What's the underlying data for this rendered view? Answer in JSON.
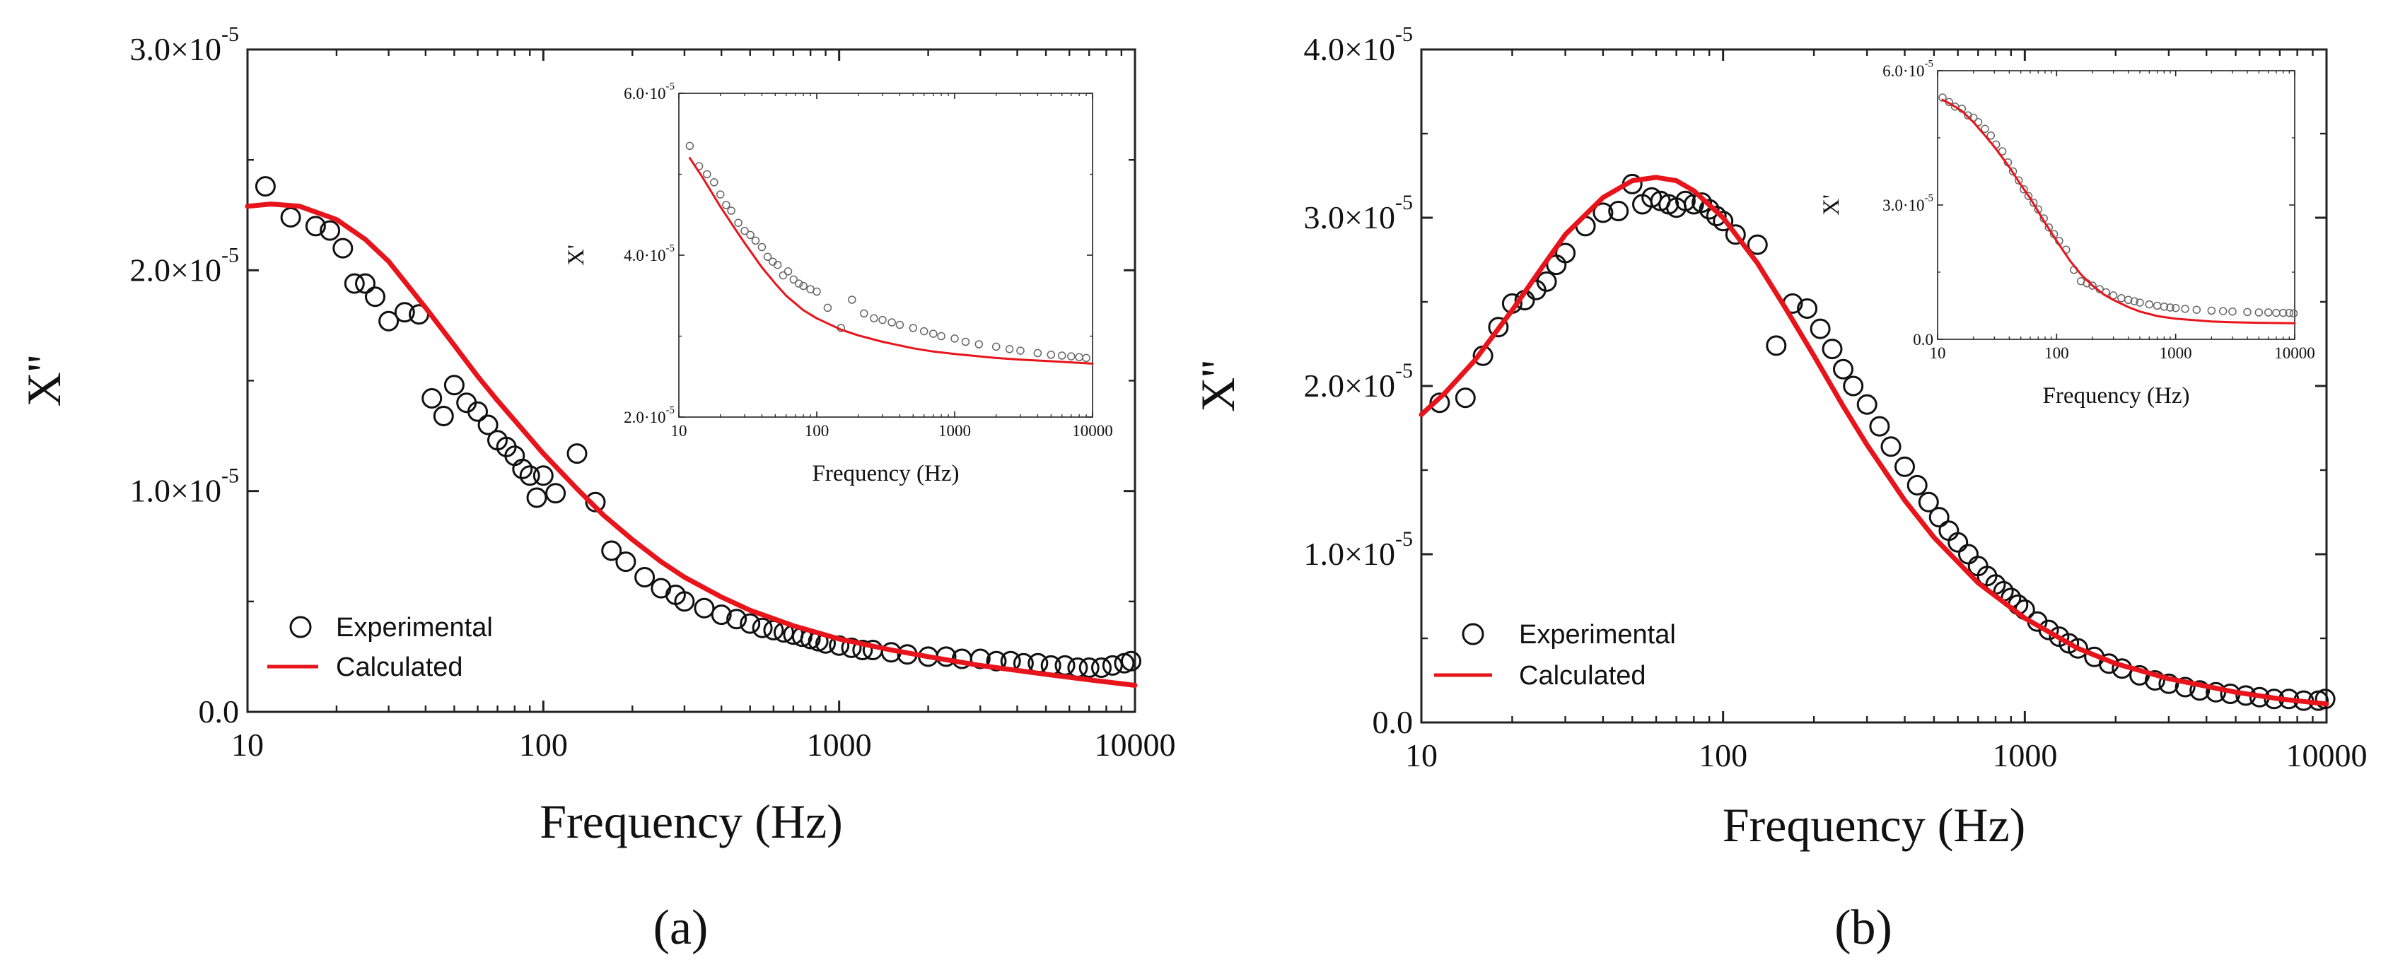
{
  "chart_data": [
    {
      "type": "scatter",
      "panel_label": "(a)",
      "xlabel": "Frequency (Hz)",
      "ylabel": "X''",
      "xscale": "log",
      "xlim": [
        10,
        10000
      ],
      "ylim": [
        0,
        3e-05
      ],
      "xticks": [
        10,
        100,
        1000,
        10000
      ],
      "xtick_labels": [
        "10",
        "100",
        "1000",
        "10000"
      ],
      "yticks": [
        0,
        1e-05,
        2e-05,
        3e-05
      ],
      "ytick_labels": [
        {
          "mant": "0.0",
          "exp": ""
        },
        {
          "mant": "1.0×10",
          "exp": "-5"
        },
        {
          "mant": "2.0×10",
          "exp": "-5"
        },
        {
          "mant": "3.0×10",
          "exp": "-5"
        }
      ],
      "legend": {
        "position": "bottom-left",
        "experimental": "Experimental",
        "calculated": "Calculated"
      },
      "series": [
        {
          "name": "Experimental",
          "style": "open-circle",
          "x": [
            11.5,
            14,
            17,
            19,
            21,
            23,
            25,
            27,
            30,
            34,
            38,
            42,
            46,
            50,
            55,
            60,
            65,
            70,
            75,
            80,
            85,
            90,
            95,
            100,
            110,
            130,
            150,
            170,
            190,
            220,
            250,
            280,
            300,
            350,
            400,
            450,
            500,
            550,
            600,
            650,
            700,
            750,
            800,
            850,
            900,
            1000,
            1100,
            1200,
            1300,
            1500,
            1700,
            2000,
            2300,
            2600,
            3000,
            3400,
            3800,
            4200,
            4700,
            5200,
            5800,
            6400,
            7000,
            7700,
            8400,
            9200,
            9700
          ],
          "y": [
            2.38e-05,
            2.24e-05,
            2.2e-05,
            2.18e-05,
            2.1e-05,
            1.94e-05,
            1.94e-05,
            1.88e-05,
            1.77e-05,
            1.81e-05,
            1.8e-05,
            1.42e-05,
            1.34e-05,
            1.48e-05,
            1.4e-05,
            1.36e-05,
            1.3e-05,
            1.23e-05,
            1.2e-05,
            1.16e-05,
            1.1e-05,
            1.07e-05,
            9.7e-06,
            1.07e-05,
            9.9e-06,
            1.17e-05,
            9.5e-06,
            7.3e-06,
            6.8e-06,
            6.1e-06,
            5.6e-06,
            5.3e-06,
            5e-06,
            4.7e-06,
            4.4e-06,
            4.2e-06,
            4e-06,
            3.8e-06,
            3.7e-06,
            3.6e-06,
            3.5e-06,
            3.4e-06,
            3.3e-06,
            3.2e-06,
            3.1e-06,
            3e-06,
            2.9e-06,
            2.8e-06,
            2.8e-06,
            2.7e-06,
            2.6e-06,
            2.5e-06,
            2.5e-06,
            2.4e-06,
            2.4e-06,
            2.3e-06,
            2.3e-06,
            2.2e-06,
            2.2e-06,
            2.1e-06,
            2.1e-06,
            2e-06,
            2e-06,
            2e-06,
            2.1e-06,
            2.2e-06,
            2.3e-06
          ]
        },
        {
          "name": "Calculated",
          "style": "line",
          "color": "#e8141b",
          "x": [
            10,
            12,
            15,
            20,
            25,
            30,
            40,
            50,
            60,
            70,
            80,
            100,
            130,
            160,
            200,
            250,
            300,
            400,
            500,
            700,
            1000,
            1500,
            2000,
            3000,
            5000,
            7000,
            10000
          ],
          "y": [
            2.29e-05,
            2.3e-05,
            2.29e-05,
            2.23e-05,
            2.14e-05,
            2.04e-05,
            1.83e-05,
            1.66e-05,
            1.52e-05,
            1.41e-05,
            1.32e-05,
            1.17e-05,
            1.01e-05,
            8.9e-06,
            7.8e-06,
            6.8e-06,
            6.1e-06,
            5.2e-06,
            4.6e-06,
            3.9e-06,
            3.3e-06,
            2.8e-06,
            2.5e-06,
            2.1e-06,
            1.7e-06,
            1.45e-06,
            1.2e-06
          ]
        }
      ],
      "inset": {
        "xlabel": "Frequency (Hz)",
        "ylabel": "X'",
        "xscale": "log",
        "xlim": [
          10,
          10000
        ],
        "ylim": [
          2e-05,
          6e-05
        ],
        "xticks": [
          10,
          100,
          1000,
          10000
        ],
        "xtick_labels": [
          "10",
          "100",
          "1000",
          "10000"
        ],
        "yticks": [
          2e-05,
          4e-05,
          6e-05
        ],
        "ytick_labels": [
          {
            "mant": "2.0·10",
            "exp": "-5"
          },
          {
            "mant": "4.0·10",
            "exp": "-5"
          },
          {
            "mant": "6.0·10",
            "exp": "-5"
          }
        ],
        "series": [
          {
            "name": "Experimental",
            "style": "open-circle",
            "x": [
              12,
              14,
              16,
              18,
              20,
              22,
              24,
              27,
              30,
              33,
              36,
              40,
              44,
              48,
              52,
              57,
              62,
              68,
              74,
              80,
              90,
              100,
              120,
              150,
              180,
              220,
              260,
              300,
              350,
              400,
              500,
              600,
              700,
              800,
              1000,
              1200,
              1500,
              2000,
              2500,
              3000,
              4000,
              5000,
              6000,
              7000,
              8000,
              9000
            ],
            "y": [
              5.35e-05,
              5.1e-05,
              5e-05,
              4.9e-05,
              4.75e-05,
              4.62e-05,
              4.55e-05,
              4.4e-05,
              4.3e-05,
              4.25e-05,
              4.18e-05,
              4.1e-05,
              3.98e-05,
              3.92e-05,
              3.88e-05,
              3.75e-05,
              3.8e-05,
              3.7e-05,
              3.65e-05,
              3.62e-05,
              3.58e-05,
              3.55e-05,
              3.35e-05,
              3.1e-05,
              3.45e-05,
              3.28e-05,
              3.22e-05,
              3.2e-05,
              3.17e-05,
              3.14e-05,
              3.1e-05,
              3.06e-05,
              3.03e-05,
              3e-05,
              2.97e-05,
              2.93e-05,
              2.9e-05,
              2.87e-05,
              2.84e-05,
              2.82e-05,
              2.79e-05,
              2.77e-05,
              2.76e-05,
              2.75e-05,
              2.74e-05,
              2.73e-05
            ]
          },
          {
            "name": "Calculated",
            "style": "line",
            "color": "#e8141b",
            "x": [
              12,
              15,
              20,
              25,
              30,
              40,
              50,
              60,
              80,
              100,
              150,
              200,
              300,
              500,
              700,
              1000,
              2000,
              3000,
              5000,
              10000
            ],
            "y": [
              5.2e-05,
              4.95e-05,
              4.6e-05,
              4.35e-05,
              4.15e-05,
              3.85e-05,
              3.65e-05,
              3.5e-05,
              3.32e-05,
              3.22e-05,
              3.08e-05,
              3.01e-05,
              2.93e-05,
              2.85e-05,
              2.81e-05,
              2.78e-05,
              2.73e-05,
              2.71e-05,
              2.69e-05,
              2.66e-05
            ]
          }
        ]
      }
    },
    {
      "type": "scatter",
      "panel_label": "(b)",
      "xlabel": "Frequency (Hz)",
      "ylabel": "X''",
      "xscale": "log",
      "xlim": [
        10,
        10000
      ],
      "ylim": [
        0,
        4e-05
      ],
      "xticks": [
        10,
        100,
        1000,
        10000
      ],
      "xtick_labels": [
        "10",
        "100",
        "1000",
        "10000"
      ],
      "yticks": [
        0,
        1e-05,
        2e-05,
        3e-05,
        4e-05
      ],
      "ytick_labels": [
        {
          "mant": "0.0",
          "exp": ""
        },
        {
          "mant": "1.0×10",
          "exp": "-5"
        },
        {
          "mant": "2.0×10",
          "exp": "-5"
        },
        {
          "mant": "3.0×10",
          "exp": "-5"
        },
        {
          "mant": "4.0×10",
          "exp": "-5"
        }
      ],
      "legend": {
        "position": "bottom-left",
        "experimental": "Experimental",
        "calculated": "Calculated"
      },
      "series": [
        {
          "name": "Experimental",
          "style": "open-circle",
          "x": [
            11.5,
            14,
            16,
            18,
            20,
            22,
            24,
            26,
            28,
            30,
            35,
            40,
            45,
            50,
            54,
            58,
            62,
            66,
            70,
            75,
            80,
            85,
            90,
            95,
            100,
            110,
            130,
            150,
            170,
            190,
            210,
            230,
            250,
            270,
            300,
            330,
            360,
            400,
            440,
            480,
            520,
            560,
            600,
            650,
            700,
            750,
            800,
            850,
            900,
            950,
            1000,
            1100,
            1200,
            1300,
            1400,
            1500,
            1700,
            1900,
            2100,
            2400,
            2700,
            3000,
            3400,
            3800,
            4300,
            4800,
            5400,
            6000,
            6700,
            7500,
            8400,
            9400,
            9900
          ],
          "y": [
            1.9e-05,
            1.93e-05,
            2.18e-05,
            2.35e-05,
            2.49e-05,
            2.51e-05,
            2.57e-05,
            2.62e-05,
            2.72e-05,
            2.79e-05,
            2.95e-05,
            3.03e-05,
            3.04e-05,
            3.2e-05,
            3.08e-05,
            3.12e-05,
            3.1e-05,
            3.08e-05,
            3.06e-05,
            3.1e-05,
            3.08e-05,
            3.09e-05,
            3.05e-05,
            3.01e-05,
            2.98e-05,
            2.9e-05,
            2.84e-05,
            2.24e-05,
            2.49e-05,
            2.46e-05,
            2.34e-05,
            2.22e-05,
            2.1e-05,
            2e-05,
            1.89e-05,
            1.76e-05,
            1.64e-05,
            1.52e-05,
            1.41e-05,
            1.31e-05,
            1.22e-05,
            1.14e-05,
            1.07e-05,
            1e-05,
            9.3e-06,
            8.7e-06,
            8.2e-06,
            7.8e-06,
            7.4e-06,
            7e-06,
            6.7e-06,
            6e-06,
            5.5e-06,
            5.1e-06,
            4.7e-06,
            4.4e-06,
            3.9e-06,
            3.5e-06,
            3.2e-06,
            2.8e-06,
            2.5e-06,
            2.3e-06,
            2.1e-06,
            1.9e-06,
            1.8e-06,
            1.7e-06,
            1.6e-06,
            1.5e-06,
            1.4e-06,
            1.4e-06,
            1.3e-06,
            1.3e-06,
            1.4e-06
          ]
        },
        {
          "name": "Calculated",
          "style": "line",
          "color": "#e8141b",
          "x": [
            10,
            12,
            15,
            20,
            25,
            30,
            40,
            50,
            60,
            70,
            80,
            100,
            130,
            160,
            200,
            250,
            300,
            400,
            500,
            700,
            1000,
            1500,
            2000,
            3000,
            5000,
            7000,
            10000
          ],
          "y": [
            1.83e-05,
            1.96e-05,
            2.15e-05,
            2.45e-05,
            2.7e-05,
            2.9e-05,
            3.12e-05,
            3.22e-05,
            3.24e-05,
            3.22e-05,
            3.16e-05,
            3e-05,
            2.73e-05,
            2.47e-05,
            2.18e-05,
            1.88e-05,
            1.65e-05,
            1.32e-05,
            1.1e-05,
            8.3e-06,
            6.2e-06,
            4.4e-06,
            3.5e-06,
            2.6e-06,
            1.8e-06,
            1.4e-06,
            1.1e-06
          ]
        }
      ],
      "inset": {
        "xlabel": "Frequency (Hz)",
        "ylabel": "X'",
        "xscale": "log",
        "xlim": [
          10,
          10000
        ],
        "ylim": [
          0,
          6e-05
        ],
        "xticks": [
          10,
          100,
          1000,
          10000
        ],
        "xtick_labels": [
          "10",
          "100",
          "1000",
          "10000"
        ],
        "yticks": [
          0,
          3e-05,
          6e-05
        ],
        "ytick_labels": [
          {
            "mant": "0.0",
            "exp": ""
          },
          {
            "mant": "3.0·10",
            "exp": "-5"
          },
          {
            "mant": "6.0·10",
            "exp": "-5"
          }
        ],
        "series": [
          {
            "name": "Experimental",
            "style": "open-circle",
            "x": [
              11,
              12.5,
              14,
              16,
              18,
              20,
              22,
              25,
              28,
              31,
              35,
              39,
              43,
              48,
              53,
              58,
              64,
              70,
              78,
              86,
              95,
              105,
              120,
              140,
              160,
              180,
              200,
              230,
              260,
              300,
              350,
              400,
              450,
              500,
              600,
              700,
              800,
              900,
              1000,
              1200,
              1500,
              2000,
              2500,
              3000,
              4000,
              5000,
              6000,
              7000,
              8000,
              9000,
              9800
            ],
            "y": [
              5.4e-05,
              5.3e-05,
              5.2e-05,
              5.15e-05,
              5e-05,
              4.95e-05,
              4.85e-05,
              4.7e-05,
              4.55e-05,
              4.35e-05,
              4.2e-05,
              3.95e-05,
              3.75e-05,
              3.55e-05,
              3.35e-05,
              3.2e-05,
              3.05e-05,
              2.9e-05,
              2.7e-05,
              2.5e-05,
              2.35e-05,
              2.2e-05,
              2e-05,
              1.55e-05,
              1.3e-05,
              1.25e-05,
              1.2e-05,
              1.12e-05,
              1.05e-05,
              9.8e-06,
              9.2e-06,
              8.8e-06,
              8.5e-06,
              8.2e-06,
              7.8e-06,
              7.5e-06,
              7.3e-06,
              7.1e-06,
              7e-06,
              6.8e-06,
              6.6e-06,
              6.4e-06,
              6.3e-06,
              6.2e-06,
              6.1e-06,
              6e-06,
              6e-06,
              5.9e-06,
              5.9e-06,
              5.9e-06,
              5.8e-06
            ]
          },
          {
            "name": "Calculated",
            "style": "line",
            "color": "#e8141b",
            "x": [
              11,
              13,
              16,
              20,
              25,
              30,
              40,
              50,
              60,
              80,
              100,
              130,
              160,
              200,
              250,
              300,
              400,
              500,
              700,
              1000,
              2000,
              3000,
              5000,
              10000
            ],
            "y": [
              5.35e-05,
              5.25e-05,
              5.1e-05,
              4.85e-05,
              4.55e-05,
              4.3e-05,
              3.85e-05,
              3.45e-05,
              3.15e-05,
              2.6e-05,
              2.2e-05,
              1.75e-05,
              1.45e-05,
              1.2e-05,
              1e-05,
              8.8e-06,
              7.2e-06,
              6.2e-06,
              5.2e-06,
              4.6e-06,
              4e-06,
              3.8e-06,
              3.7e-06,
              3.6e-06
            ]
          }
        ]
      }
    }
  ]
}
